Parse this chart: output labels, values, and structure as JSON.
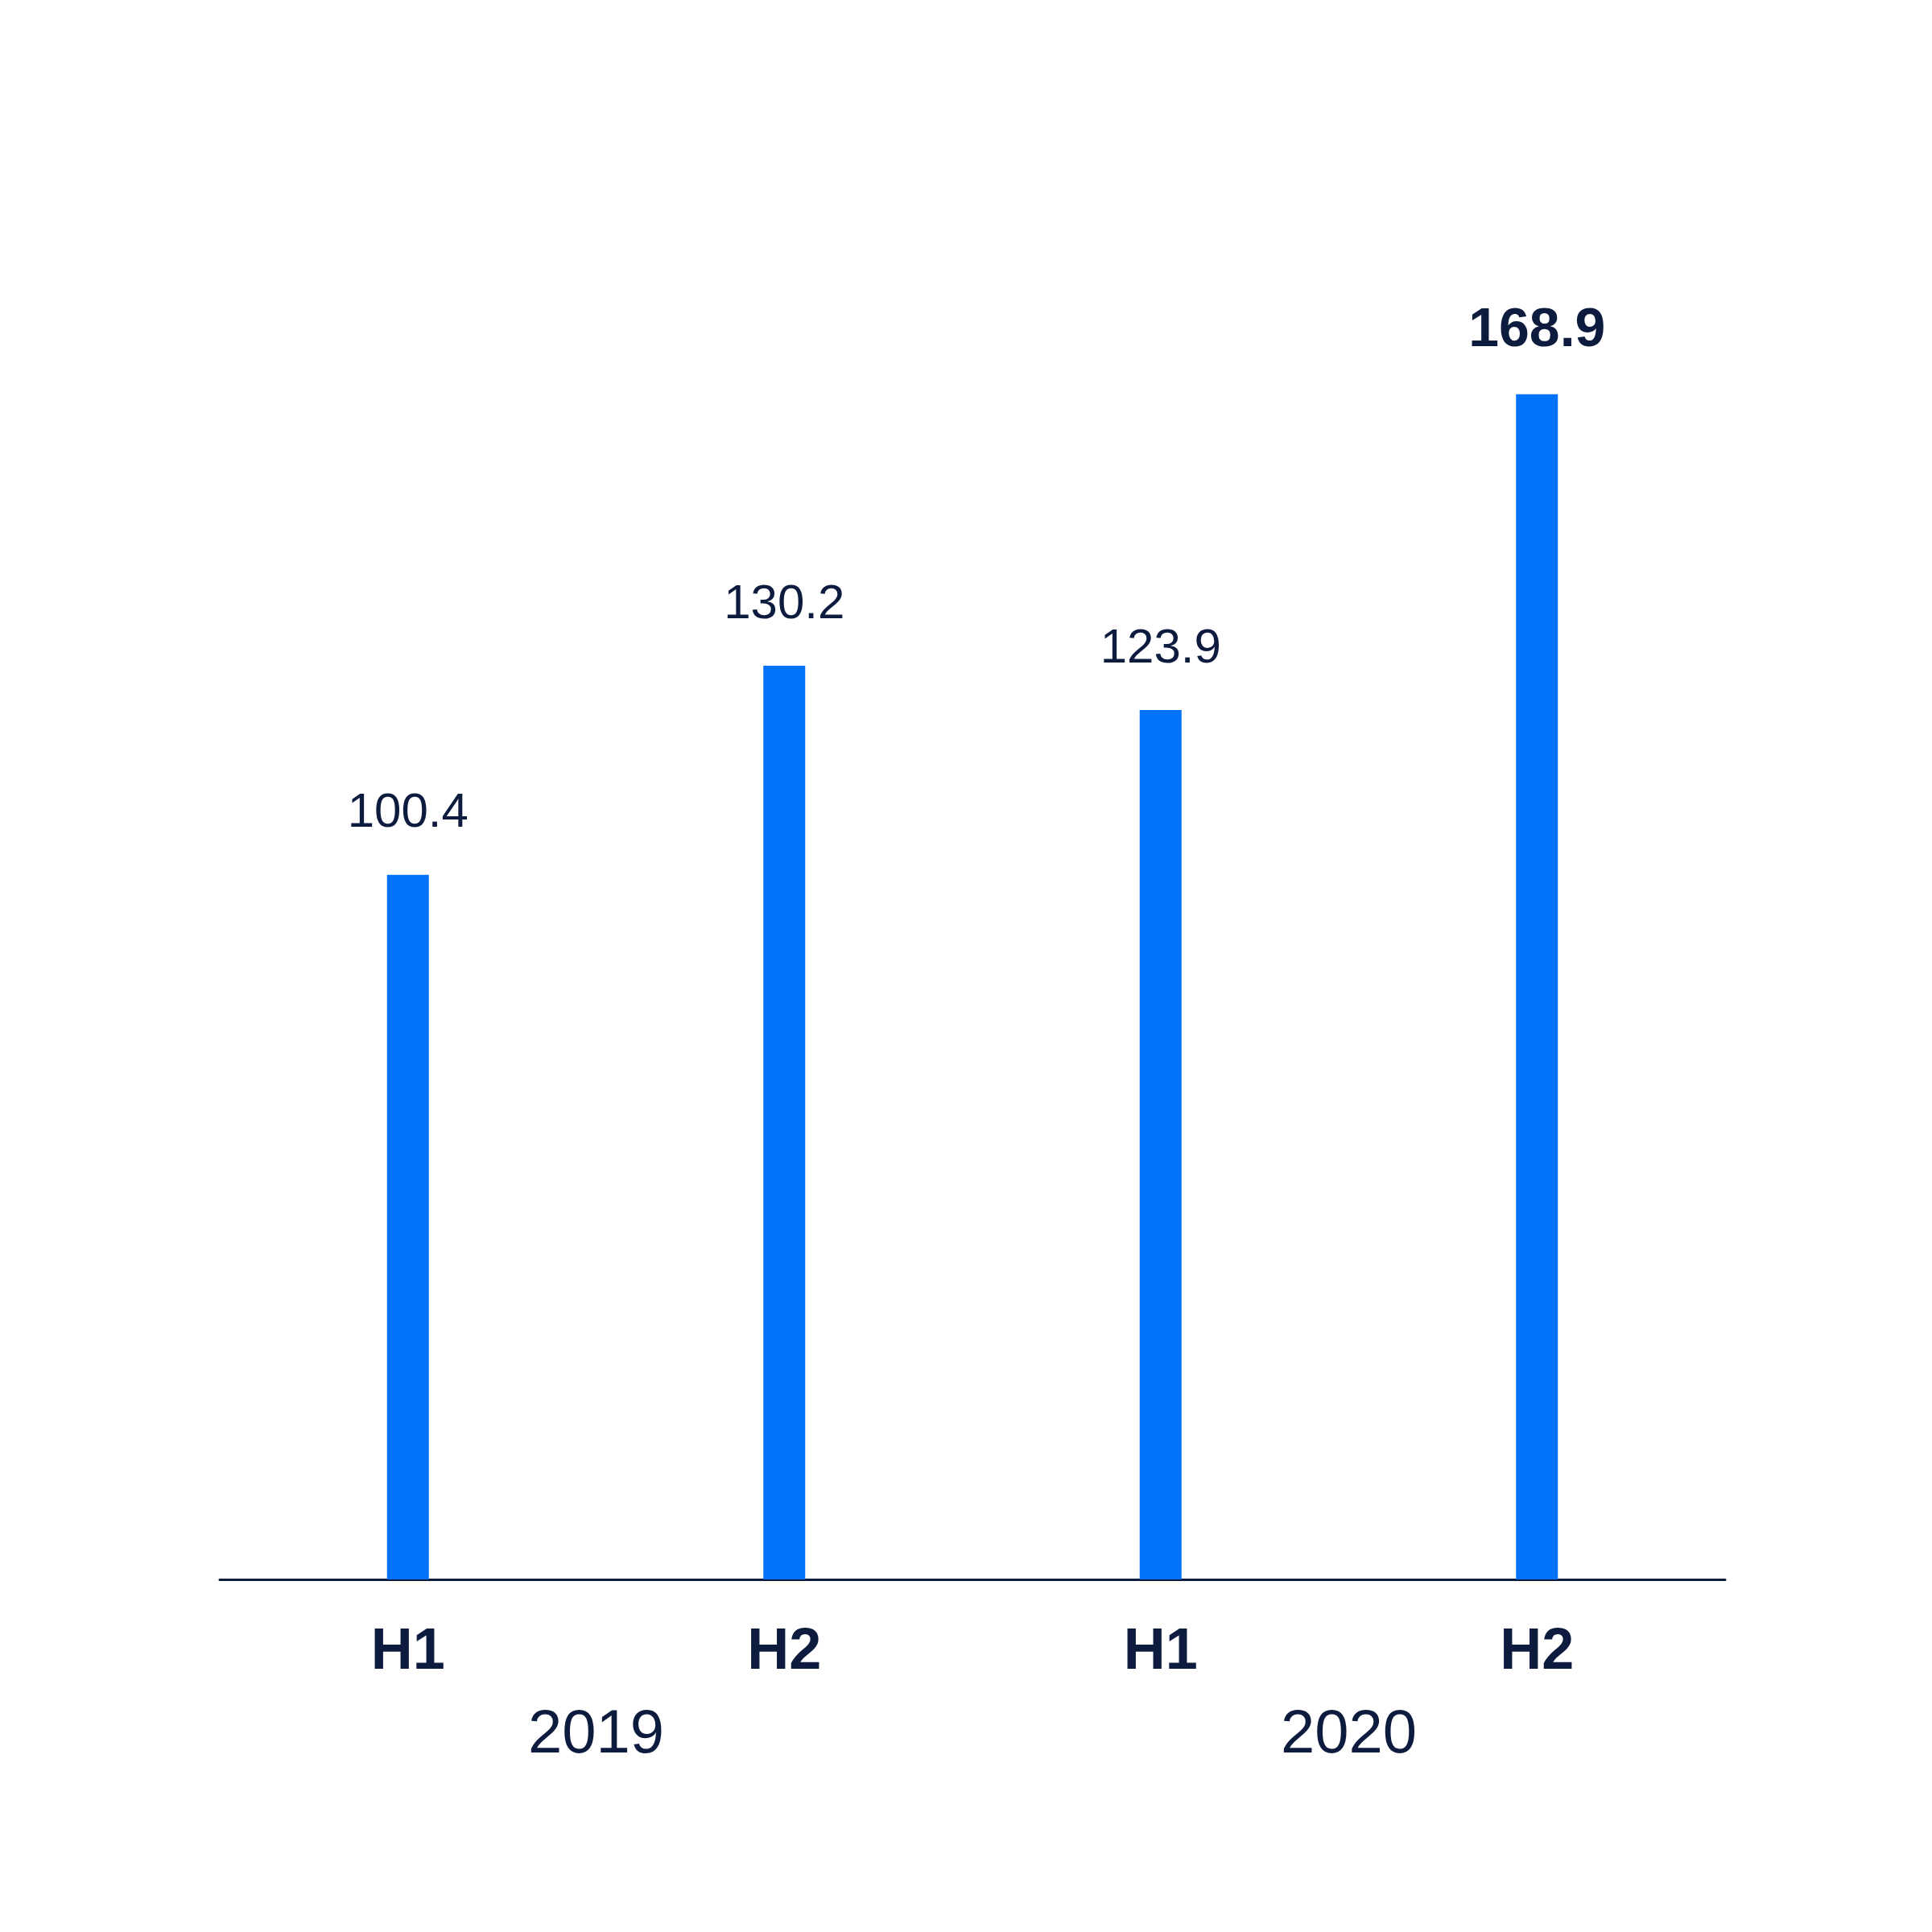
{
  "chart_data": {
    "type": "bar",
    "categories": [
      "H1",
      "H2",
      "H1",
      "H2"
    ],
    "values": [
      100.4,
      130.2,
      123.9,
      168.9
    ],
    "color": "#0073fa",
    "data_labels": true,
    "annotations": [
      "2019",
      "2020"
    ]
  }
}
